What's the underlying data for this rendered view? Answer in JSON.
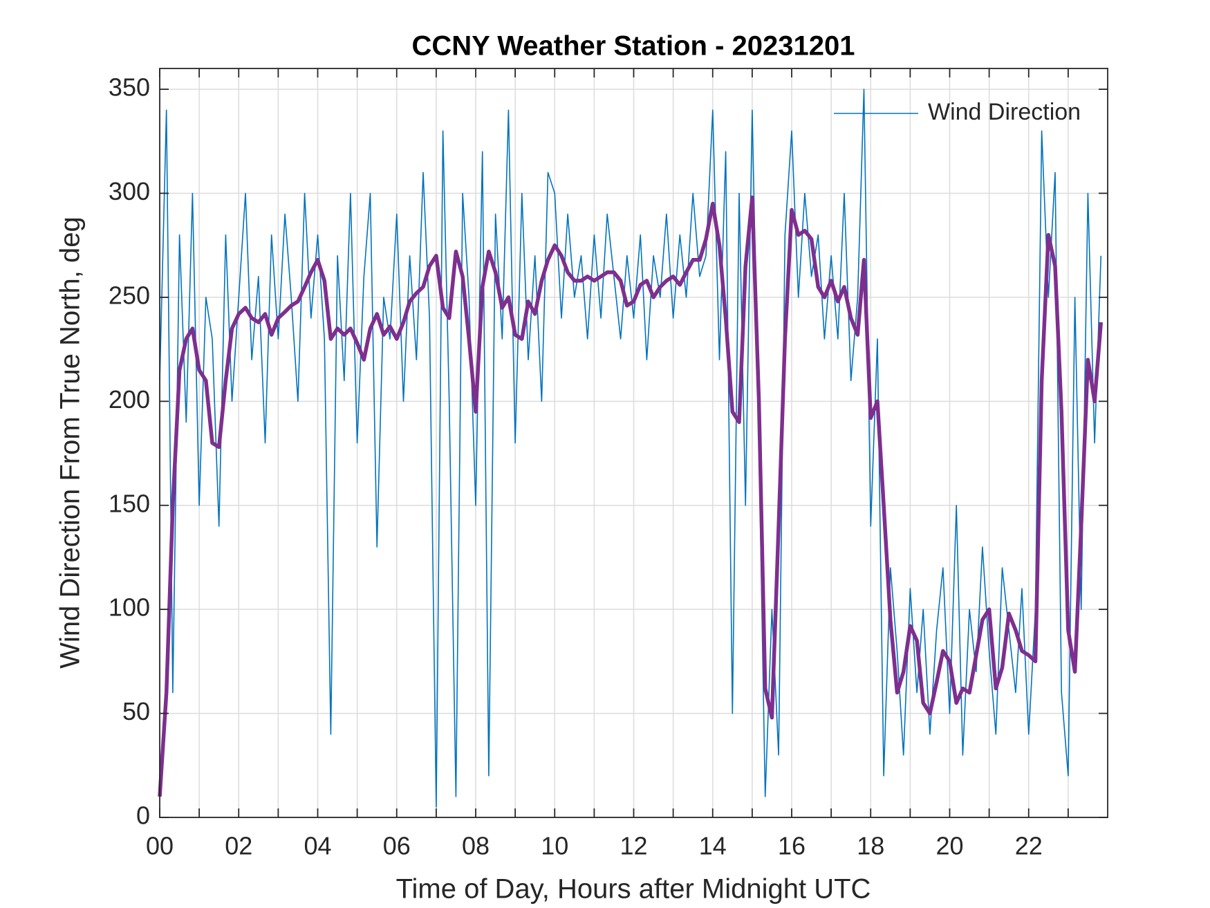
{
  "chart_data": {
    "type": "line",
    "title": "CCNY Weather Station - 20231201",
    "xlabel": "Time of Day, Hours after Midnight UTC",
    "ylabel": "Wind Direction From True North, deg",
    "x": [
      0,
      0.17,
      0.33,
      0.5,
      0.67,
      0.83,
      1,
      1.17,
      1.33,
      1.5,
      1.67,
      1.83,
      2,
      2.17,
      2.33,
      2.5,
      2.67,
      2.83,
      3,
      3.17,
      3.33,
      3.5,
      3.67,
      3.83,
      4,
      4.17,
      4.33,
      4.5,
      4.67,
      4.83,
      5,
      5.17,
      5.33,
      5.5,
      5.67,
      5.83,
      6,
      6.17,
      6.33,
      6.5,
      6.67,
      6.83,
      7,
      7.17,
      7.33,
      7.5,
      7.67,
      7.83,
      8,
      8.17,
      8.33,
      8.5,
      8.67,
      8.83,
      9,
      9.17,
      9.33,
      9.5,
      9.67,
      9.83,
      10,
      10.17,
      10.33,
      10.5,
      10.67,
      10.83,
      11,
      11.17,
      11.33,
      11.5,
      11.67,
      11.83,
      12,
      12.17,
      12.33,
      12.5,
      12.67,
      12.83,
      13,
      13.17,
      13.33,
      13.5,
      13.67,
      13.83,
      14,
      14.17,
      14.33,
      14.5,
      14.67,
      14.83,
      15,
      15.17,
      15.33,
      15.5,
      15.67,
      15.83,
      16,
      16.17,
      16.33,
      16.5,
      16.67,
      16.83,
      17,
      17.17,
      17.33,
      17.5,
      17.67,
      17.83,
      18,
      18.17,
      18.33,
      18.5,
      18.67,
      18.83,
      19,
      19.17,
      19.33,
      19.5,
      19.67,
      19.83,
      20,
      20.17,
      20.33,
      20.5,
      20.67,
      20.83,
      21,
      21.17,
      21.33,
      21.5,
      21.67,
      21.83,
      22,
      22.17,
      22.33,
      22.5,
      22.67,
      22.83,
      23,
      23.17,
      23.33,
      23.5,
      23.67,
      23.83
    ],
    "series": [
      {
        "name": "Wind Direction",
        "color": "#0072BD",
        "values": [
          210,
          340,
          60,
          280,
          190,
          300,
          150,
          250,
          230,
          140,
          280,
          200,
          250,
          300,
          220,
          260,
          180,
          280,
          230,
          290,
          250,
          200,
          300,
          240,
          280,
          230,
          40,
          270,
          210,
          300,
          180,
          260,
          300,
          130,
          250,
          230,
          290,
          200,
          270,
          220,
          310,
          240,
          5,
          330,
          200,
          10,
          300,
          250,
          150,
          320,
          20,
          290,
          230,
          340,
          180,
          300,
          220,
          270,
          200,
          310,
          300,
          240,
          290,
          250,
          270,
          230,
          280,
          240,
          290,
          260,
          230,
          270,
          240,
          280,
          220,
          270,
          250,
          290,
          240,
          280,
          250,
          300,
          260,
          270,
          340,
          220,
          320,
          50,
          300,
          150,
          340,
          180,
          10,
          100,
          30,
          280,
          330,
          250,
          300,
          260,
          280,
          230,
          270,
          230,
          300,
          210,
          250,
          350,
          140,
          230,
          20,
          120,
          80,
          30,
          110,
          60,
          100,
          40,
          90,
          120,
          50,
          150,
          30,
          100,
          70,
          130,
          80,
          40,
          120,
          90,
          60,
          110,
          40,
          100,
          330,
          250,
          310,
          60,
          20,
          250,
          100,
          300,
          180,
          270
        ]
      },
      {
        "color": "#7E2F8E",
        "values": [
          10,
          60,
          150,
          215,
          230,
          235,
          215,
          210,
          180,
          178,
          210,
          235,
          242,
          245,
          240,
          238,
          242,
          232,
          240,
          243,
          246,
          248,
          255,
          262,
          268,
          258,
          230,
          235,
          232,
          235,
          228,
          220,
          235,
          242,
          232,
          236,
          230,
          238,
          248,
          252,
          255,
          265,
          270,
          245,
          240,
          272,
          260,
          230,
          195,
          255,
          272,
          262,
          245,
          250,
          232,
          230,
          248,
          242,
          258,
          268,
          275,
          270,
          262,
          258,
          258,
          260,
          258,
          260,
          262,
          262,
          258,
          246,
          248,
          256,
          258,
          250,
          255,
          258,
          260,
          256,
          262,
          268,
          268,
          278,
          295,
          275,
          240,
          195,
          190,
          265,
          298,
          200,
          62,
          48,
          140,
          230,
          292,
          280,
          282,
          278,
          255,
          250,
          258,
          248,
          255,
          240,
          232,
          268,
          192,
          200,
          150,
          95,
          60,
          70,
          92,
          85,
          55,
          50,
          65,
          80,
          75,
          55,
          62,
          60,
          78,
          95,
          100,
          62,
          72,
          98,
          90,
          80,
          78,
          75,
          210,
          280,
          265,
          195,
          90,
          70,
          140,
          220,
          200,
          238
        ]
      }
    ],
    "xlim": [
      0,
      24
    ],
    "xticks": [
      {
        "value": 0,
        "label": "00"
      },
      {
        "value": 2,
        "label": "02"
      },
      {
        "value": 4,
        "label": "04"
      },
      {
        "value": 6,
        "label": "06"
      },
      {
        "value": 8,
        "label": "08"
      },
      {
        "value": 10,
        "label": "10"
      },
      {
        "value": 12,
        "label": "12"
      },
      {
        "value": 14,
        "label": "14"
      },
      {
        "value": 16,
        "label": "16"
      },
      {
        "value": 18,
        "label": "18"
      },
      {
        "value": 20,
        "label": "20"
      },
      {
        "value": 22,
        "label": "22"
      }
    ],
    "xminorticks": [
      1,
      3,
      5,
      7,
      9,
      11,
      13,
      15,
      17,
      19,
      21,
      23
    ],
    "ylim": [
      0,
      360
    ],
    "yticks": [
      0,
      50,
      100,
      150,
      200,
      250,
      300,
      350
    ],
    "grid": true,
    "legend": "northeast"
  }
}
